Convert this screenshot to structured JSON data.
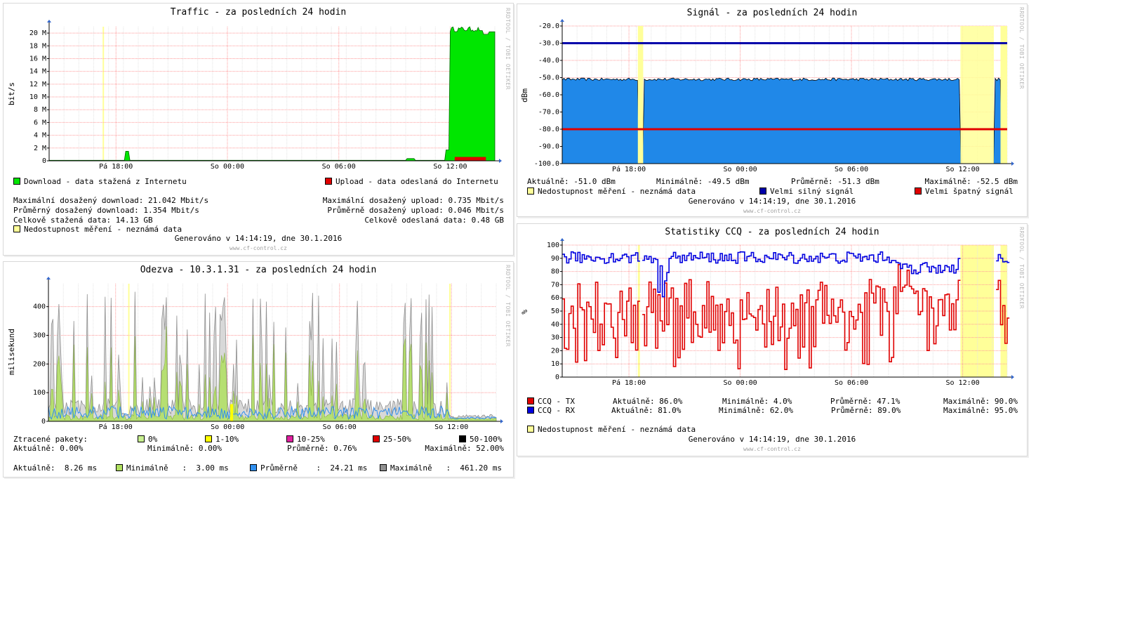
{
  "colors": {
    "download": "#00e600",
    "upload": "#e00000",
    "unavail": "#ffff99",
    "signal_area": "#2088e8",
    "strong": "#0000aa",
    "weak": "#e00000",
    "tx": "#e00000",
    "rx": "#0000e0",
    "grid_major": "#ff9999",
    "grid_minor": "#e4e4e4",
    "resp_avg": "#3090f0",
    "resp_min": "#b0e060",
    "resp_max": "#909090",
    "loss_1": "#ffff00",
    "loss_10": "#e020a0",
    "loss_25": "#e00000",
    "loss_50": "#000000",
    "loss_0": "#c8f090"
  },
  "watermark": "RRDTOOL / TOBI OETIKER",
  "footer": "www.cf-control.cz",
  "generated": "Generováno v 14:14:19, dne 30.1.2016",
  "unavail_label": "Nedostupnost měření - neznámá data",
  "chart_data": [
    {
      "id": "traffic",
      "type": "area",
      "title": "Traffic - za posledních 24 hodin",
      "ylabel": "bit/s",
      "ylim": [
        0,
        21
      ],
      "yticks": [
        "0",
        "2 M",
        "4 M",
        "6 M",
        "8 M",
        "10 M",
        "12 M",
        "14 M",
        "16 M",
        "18 M",
        "20 M"
      ],
      "xticks": [
        "Pá 18:00",
        "So 00:00",
        "So 06:00",
        "So 12:00"
      ],
      "legend_download": "Download - data stažená z Internetu",
      "legend_upload": "Upload - data odeslaná do Internetu",
      "stats": {
        "max_down": "Maximální dosažený download: 21.042 Mbit/s",
        "avg_down": "Průměrný dosažený download: 1.354 Mbit/s",
        "total_down": "Celkově stažená data: 14.13 GB",
        "max_up": "Maximální dosažený upload: 0.735 Mbit/s",
        "avg_up": "Průměrně dosažený upload: 0.046 Mbit/s",
        "total_up": "Celkově odeslaná data: 0.48 GB"
      }
    },
    {
      "id": "signal",
      "type": "area",
      "title": "Signál - za posledních 24 hodin",
      "ylabel": "dBm",
      "ylim": [
        -100,
        -20
      ],
      "yticks": [
        "-100.0",
        "-90.0",
        "-80.0",
        "-70.0",
        "-60.0",
        "-50.0",
        "-40.0",
        "-30.0",
        "-20.0"
      ],
      "xticks": [
        "Pá 18:00",
        "So 00:00",
        "So 06:00",
        "So 12:00"
      ],
      "strong_line": -30,
      "weak_line": -80,
      "signal_level": -51,
      "stats": {
        "cur": "Aktuálně: -51.0 dBm",
        "min": "Minimálně: -49.5 dBm",
        "avg": "Průměrně: -51.3 dBm",
        "max": "Maximálně: -52.5 dBm"
      },
      "legend_strong": "Velmi silný signál",
      "legend_weak": "Velmi špatný signál"
    },
    {
      "id": "response",
      "type": "area",
      "title": "Odezva - 10.3.1.31 - za posledních 24 hodin",
      "ylabel": "milisekund",
      "ylim": [
        0,
        480
      ],
      "yticks": [
        "0",
        "100",
        "200",
        "300",
        "400"
      ],
      "xticks": [
        "Pá 18:00",
        "So 00:00",
        "So 06:00",
        "So 12:00"
      ],
      "loss": {
        "label": "Ztracené pakety:",
        "l0": "0%",
        "l1": "1-10%",
        "l2": "10-25%",
        "l3": "25-50%",
        "l4": "50-100%",
        "cur": "Aktuálně: 0.00%",
        "min": "Minimálně: 0.00%",
        "avg": "Průměrně: 0.76%",
        "max": "Maximálně: 52.00%"
      },
      "rtt": {
        "cur": "Aktuálně:  8.26 ms",
        "min_label": "Minimálně",
        "min_val": ":  3.00 ms",
        "avg_label": "Průměrně",
        "avg_val": ":  24.21 ms",
        "max_label": "Maximálně",
        "max_val": ":  461.20 ms"
      }
    },
    {
      "id": "ccq",
      "type": "line",
      "title": "Statistiky CCQ - za posledních 24 hodin",
      "ylabel": "%",
      "ylim": [
        0,
        100
      ],
      "yticks": [
        "0",
        "10",
        "20",
        "30",
        "40",
        "50",
        "60",
        "70",
        "80",
        "90",
        "100"
      ],
      "xticks": [
        "Pá 18:00",
        "So 00:00",
        "So 06:00",
        "So 12:00"
      ],
      "series": [
        {
          "name": "CCQ - TX",
          "cur": "Aktuálně: 86.0%",
          "min": "Minimálně: 4.0%",
          "avg": "Průměrně: 47.1%",
          "max": "Maximálně: 90.0%"
        },
        {
          "name": "CCQ - RX",
          "cur": "Aktuálně: 81.0%",
          "min": "Minimálně: 62.0%",
          "avg": "Průměrně: 89.0%",
          "max": "Maximálně: 95.0%"
        }
      ]
    }
  ]
}
